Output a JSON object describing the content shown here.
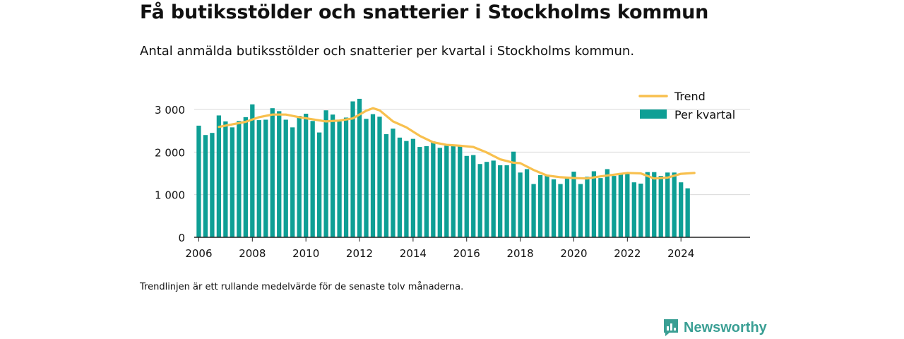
{
  "title": "Få butiksstölder och snatterier i Stockholms kommun",
  "subtitle": "Antal anmälda butiksstölder och snatterier per kvartal i Stockholms kommun.",
  "footnote": "Trendlinjen är ett rullande medelvärde för de senaste tolv månaderna.",
  "brand": "Newsworthy",
  "colors": {
    "bars": "#0e9f95",
    "trend": "#f8c04e",
    "grid": "#d9d9d9",
    "axis": "#222222",
    "brand": "#3a9f94"
  },
  "chart_data": {
    "type": "bar",
    "ylim": [
      0,
      3300
    ],
    "yticks": [
      0,
      1000,
      2000,
      3000
    ],
    "ytick_labels": [
      "0",
      "1 000",
      "2 000",
      "3 000"
    ],
    "xticks": [
      2006,
      2008,
      2010,
      2012,
      2014,
      2016,
      2018,
      2020,
      2022,
      2024
    ],
    "grid": true,
    "legend_position": "top-right",
    "series": [
      {
        "name": "Per kvartal",
        "type": "bar",
        "start": "2006 Q1",
        "values": [
          2620,
          2400,
          2450,
          2860,
          2720,
          2580,
          2730,
          2820,
          3120,
          2750,
          2760,
          3030,
          2960,
          2760,
          2580,
          2850,
          2900,
          2730,
          2460,
          2980,
          2880,
          2720,
          2810,
          3190,
          3250,
          2780,
          2890,
          2830,
          2420,
          2550,
          2340,
          2260,
          2310,
          2120,
          2140,
          2250,
          2100,
          2150,
          2140,
          2150,
          1910,
          1930,
          1720,
          1770,
          1800,
          1690,
          1690,
          2010,
          1520,
          1600,
          1250,
          1460,
          1460,
          1360,
          1250,
          1420,
          1540,
          1250,
          1420,
          1550,
          1390,
          1600,
          1440,
          1510,
          1500,
          1290,
          1260,
          1530,
          1530,
          1440,
          1520,
          1520,
          1290,
          1150
        ]
      },
      {
        "name": "Trend",
        "type": "line",
        "x": [
          2006.75,
          2007.25,
          2007.75,
          2008.25,
          2008.75,
          2009.25,
          2009.75,
          2010.25,
          2010.75,
          2011.25,
          2011.75,
          2012.25,
          2012.5,
          2012.75,
          2013.25,
          2013.75,
          2014.25,
          2014.75,
          2015.25,
          2015.75,
          2016.25,
          2016.75,
          2017.25,
          2017.75,
          2018.0,
          2018.5,
          2019.0,
          2019.5,
          2020.0,
          2020.5,
          2021.0,
          2021.5,
          2022.0,
          2022.5,
          2023.0,
          2023.5,
          2024.0,
          2024.5
        ],
        "values": [
          2590,
          2650,
          2710,
          2820,
          2880,
          2880,
          2820,
          2770,
          2720,
          2740,
          2790,
          2970,
          3030,
          2980,
          2720,
          2580,
          2380,
          2230,
          2170,
          2150,
          2120,
          1990,
          1830,
          1750,
          1740,
          1580,
          1450,
          1410,
          1390,
          1380,
          1430,
          1470,
          1510,
          1500,
          1380,
          1400,
          1490,
          1510
        ]
      }
    ]
  }
}
